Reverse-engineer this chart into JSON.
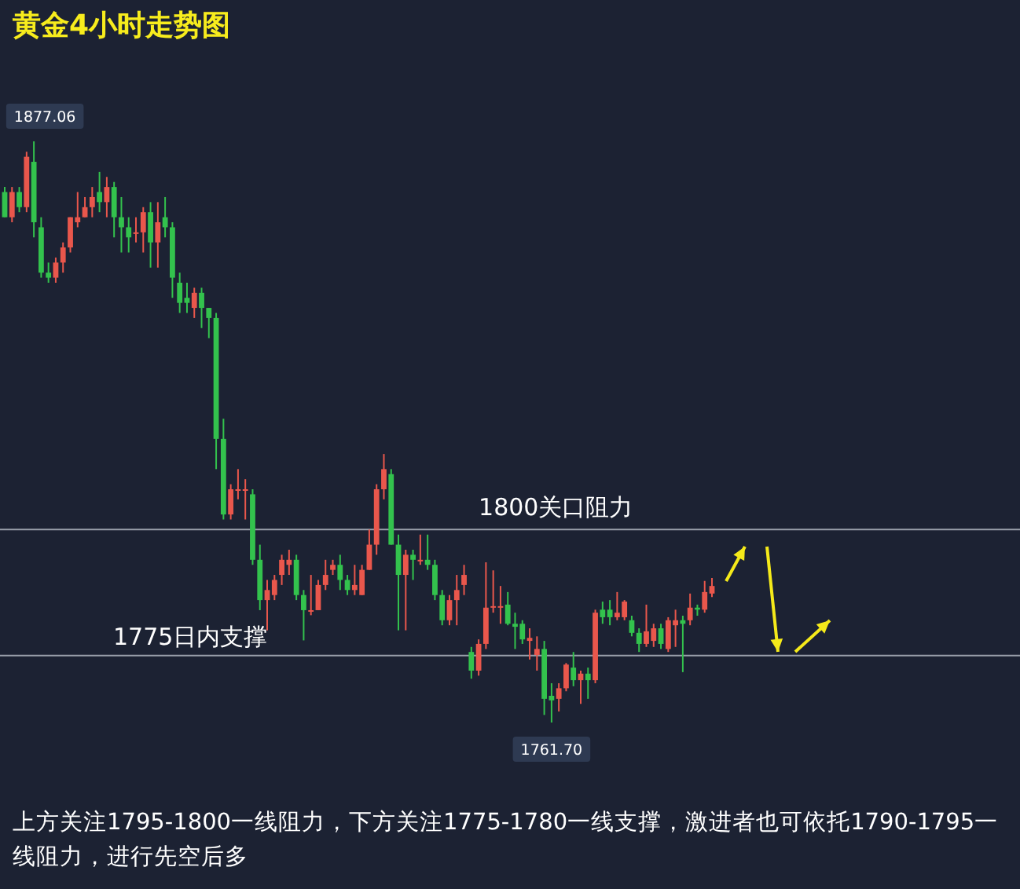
{
  "chart_data": {
    "type": "candlestick",
    "title": "黄金4小时走势图",
    "categories": [
      null,
      null,
      null,
      null,
      null,
      null,
      null,
      null,
      null,
      null,
      null,
      null,
      null,
      null,
      null,
      null,
      null,
      null,
      null,
      null,
      null,
      null,
      null,
      null,
      null,
      null,
      null,
      null,
      null,
      null,
      null,
      null,
      null,
      null,
      null,
      null,
      null,
      null,
      null,
      null,
      null,
      null,
      null,
      null,
      null,
      null,
      null,
      null,
      null,
      null,
      null,
      null,
      null,
      null,
      null,
      null,
      null,
      null,
      null,
      null,
      null,
      null,
      null,
      null,
      null,
      null,
      null,
      null,
      null,
      null,
      null,
      null,
      null,
      null,
      null,
      null,
      null,
      null,
      null,
      null,
      null,
      null,
      null,
      null,
      null,
      null,
      null,
      null,
      null,
      null,
      null,
      null,
      null,
      null,
      null,
      null,
      null,
      null
    ],
    "ohlc": [
      [
        1867,
        1868,
        1862,
        1862
      ],
      [
        1862,
        1868,
        1861,
        1867
      ],
      [
        1867,
        1868,
        1863,
        1864
      ],
      [
        1864,
        1875,
        1863,
        1874
      ],
      [
        1873,
        1877.06,
        1858,
        1861
      ],
      [
        1860,
        1862,
        1850,
        1851
      ],
      [
        1851,
        1853,
        1849,
        1850
      ],
      [
        1850,
        1854,
        1849,
        1853
      ],
      [
        1853,
        1857,
        1851,
        1856
      ],
      [
        1856,
        1862,
        1855,
        1862
      ],
      [
        1861,
        1867,
        1860,
        1862
      ],
      [
        1862,
        1866,
        1862,
        1864
      ],
      [
        1864,
        1868,
        1862,
        1866
      ],
      [
        1867,
        1871,
        1863,
        1865
      ],
      [
        1865,
        1870,
        1862,
        1868
      ],
      [
        1868,
        1869,
        1858,
        1862
      ],
      [
        1862,
        1866,
        1855,
        1860
      ],
      [
        1860,
        1862,
        1855,
        1858
      ],
      [
        1859,
        1862,
        1857,
        1859
      ],
      [
        1859,
        1864,
        1855,
        1863
      ],
      [
        1863,
        1865,
        1852,
        1857
      ],
      [
        1857,
        1865,
        1852,
        1861
      ],
      [
        1862,
        1866,
        1858,
        1860
      ],
      [
        1860,
        1861,
        1846,
        1850
      ],
      [
        1849,
        1851,
        1843,
        1845
      ],
      [
        1846,
        1849,
        1843,
        1845
      ],
      [
        1844,
        1848,
        1842,
        1847
      ],
      [
        1847,
        1848,
        1840,
        1844
      ],
      [
        1844,
        1844,
        1838,
        1842
      ],
      [
        1842,
        1843,
        1812,
        1818
      ],
      [
        1818,
        1822,
        1802,
        1803
      ],
      [
        1803,
        1809,
        1802,
        1808
      ],
      [
        1808,
        1812,
        1806,
        1808
      ],
      [
        1808,
        1810,
        1802,
        1808
      ],
      [
        1807,
        1808,
        1793,
        1794
      ],
      [
        1794,
        1797,
        1784,
        1786
      ],
      [
        1786,
        1790,
        1780,
        1788
      ],
      [
        1787,
        1791,
        1786,
        1790
      ],
      [
        1791,
        1795,
        1789,
        1794
      ],
      [
        1793,
        1796,
        1791,
        1794
      ],
      [
        1794,
        1795,
        1786,
        1787
      ],
      [
        1787,
        1788,
        1778,
        1784
      ],
      [
        1784,
        1791,
        1783,
        1784
      ],
      [
        1784,
        1790,
        1784,
        1789
      ],
      [
        1789,
        1794,
        1788,
        1791
      ],
      [
        1792,
        1794,
        1791,
        1793
      ],
      [
        1793,
        1795,
        1788,
        1790
      ],
      [
        1790,
        1791,
        1787,
        1788
      ],
      [
        1788,
        1793,
        1787,
        1789
      ],
      [
        1787,
        1793,
        1787,
        1792
      ],
      [
        1792,
        1800,
        1792,
        1797
      ],
      [
        1797,
        1809,
        1795,
        1808
      ],
      [
        1808,
        1815,
        1806,
        1812
      ],
      [
        1811,
        1812,
        1797,
        1797
      ],
      [
        1797,
        1799,
        1780,
        1791
      ],
      [
        1791,
        1796,
        1780,
        1795
      ],
      [
        1795,
        1796,
        1790,
        1794
      ],
      [
        1794,
        1799,
        1793,
        1794
      ],
      [
        1794,
        1799,
        1792,
        1793
      ],
      [
        1793,
        1794,
        1786,
        1787
      ],
      [
        1787,
        1788,
        1781,
        1782
      ],
      [
        1782,
        1787,
        1781,
        1786
      ],
      [
        1786,
        1791,
        1781,
        1788
      ],
      [
        1789,
        1793,
        1787,
        1791
      ],
      [
        1775.7,
        1776.7,
        1770.4,
        1772.0
      ],
      [
        1772.0,
        1778.2,
        1771.0,
        1777.3
      ],
      [
        1777.3,
        1793.5,
        1776.3,
        1784.5
      ],
      [
        1784.5,
        1791.9,
        1783.5,
        1784.8
      ],
      [
        1784.5,
        1788.8,
        1781.3,
        1784.8
      ],
      [
        1785.1,
        1787.6,
        1781.0,
        1781.3
      ],
      [
        1781.3,
        1783.5,
        1776.3,
        1780.7
      ],
      [
        1781.3,
        1782.0,
        1777.3,
        1778.2
      ],
      [
        1777.9,
        1780.4,
        1774.2,
        1778.5
      ],
      [
        1775.1,
        1778.8,
        1772.0,
        1776.3
      ],
      [
        1776.3,
        1777.9,
        1763.2,
        1766.4
      ],
      [
        1767.0,
        1769.5,
        1761.7,
        1766.1
      ],
      [
        1766.4,
        1769.5,
        1763.9,
        1768.5
      ],
      [
        1768.5,
        1773.5,
        1767.9,
        1773.2
      ],
      [
        1772.6,
        1775.7,
        1768.9,
        1770.1
      ],
      [
        1770.1,
        1772.0,
        1765.4,
        1771.4
      ],
      [
        1771.4,
        1772.6,
        1766.4,
        1770.1
      ],
      [
        1770.1,
        1784.1,
        1769.5,
        1783.5
      ],
      [
        1784.1,
        1785.7,
        1781.3,
        1782.6
      ],
      [
        1784.1,
        1786.0,
        1781.0,
        1782.6
      ],
      [
        1782.6,
        1787.6,
        1782.0,
        1783.5
      ],
      [
        1782.6,
        1786.0,
        1782.0,
        1785.7
      ],
      [
        1782.0,
        1782.9,
        1778.8,
        1779.5
      ],
      [
        1779.5,
        1780.4,
        1775.7,
        1777.3
      ],
      [
        1777.3,
        1785.1,
        1776.7,
        1779.8
      ],
      [
        1777.9,
        1781.3,
        1776.7,
        1780.4
      ],
      [
        1780.4,
        1781.3,
        1776.3,
        1777.3
      ],
      [
        1776.3,
        1782.6,
        1775.7,
        1782.0
      ],
      [
        1781.0,
        1784.1,
        1776.7,
        1782.0
      ],
      [
        1782.0,
        1782.9,
        1771.7,
        1781.3
      ],
      [
        1782.0,
        1787.3,
        1781.0,
        1784.5
      ],
      [
        1784.5,
        1785.1,
        1782.9,
        1784.1
      ],
      [
        1784.1,
        1789.8,
        1783.5,
        1787.6
      ],
      [
        1787.3,
        1790.4,
        1786.6,
        1788.8
      ]
    ],
    "ref_lines": [
      {
        "axis": "y",
        "value": 1800,
        "label": "1800关口阻力",
        "color": "#9aa0ab"
      },
      {
        "axis": "y",
        "value": 1775,
        "label": "1775日内支撑",
        "color": "#9aa0ab"
      }
    ],
    "annotations": [
      "1877.06",
      "1761.70",
      "上方关注1795-1800一线阻力，下方关注1775-1780一线支撑，激进者也可依托1790-1795一线阻力，进行先空后多"
    ]
  }
}
